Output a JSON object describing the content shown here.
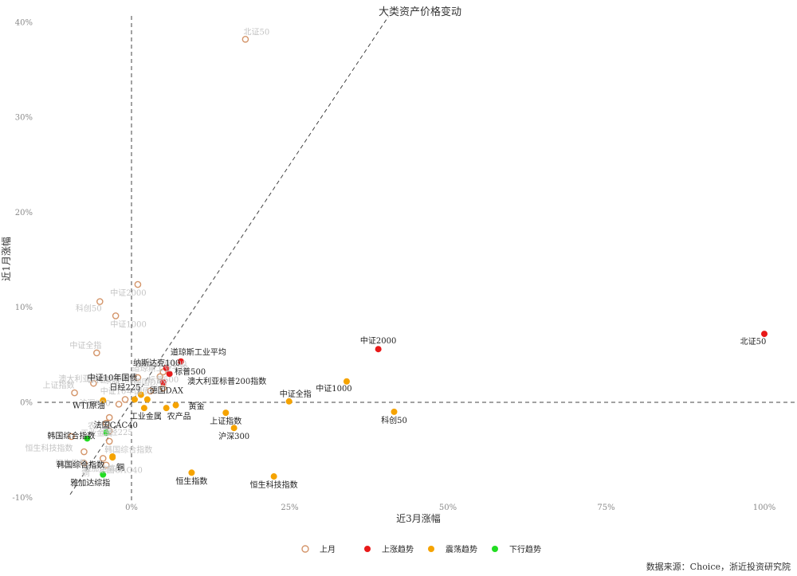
{
  "source_note": "数据来源：Choice，浙近投资研究院",
  "chart_data": {
    "type": "scatter",
    "title": "大类资产价格变动",
    "xlabel": "近3月涨幅",
    "ylabel": "近1月涨幅",
    "x_ticks": [
      "0%",
      "25%",
      "50%",
      "75%",
      "100%"
    ],
    "y_ticks": [
      "-10%",
      "0%",
      "10%",
      "20%",
      "30%",
      "40%"
    ],
    "xlim": [
      -12,
      102
    ],
    "ylim": [
      -10,
      41
    ],
    "grid": false,
    "legend_position": "bottom",
    "legend": [
      {
        "name": "上月",
        "style": "hollow",
        "color": "#d4956a"
      },
      {
        "name": "上涨趋势",
        "style": "filled",
        "color": "#e81919"
      },
      {
        "name": "震荡趋势",
        "style": "filled",
        "color": "#f5a300"
      },
      {
        "name": "下行趋势",
        "style": "filled",
        "color": "#22dd22"
      }
    ],
    "series": [
      {
        "name": "上月",
        "points": [
          {
            "label": "北证50",
            "x": 18,
            "y": 38.2
          },
          {
            "label": "中证2000",
            "x": 1,
            "y": 12.4
          },
          {
            "label": "科创50",
            "x": -5,
            "y": 10.6
          },
          {
            "label": "中证1000",
            "x": -2.5,
            "y": 9.1
          },
          {
            "label": "中证全指",
            "x": -5.5,
            "y": 5.2
          },
          {
            "label": "纳斯达克100",
            "x": 5,
            "y": 3.2
          },
          {
            "label": "澳大利亚标普200指数",
            "x": 1,
            "y": 2.6
          },
          {
            "label": "道琼斯工业平均",
            "x": 4.5,
            "y": 2.7
          },
          {
            "label": "上证指数",
            "x": -9,
            "y": 1.0
          },
          {
            "label": "WTI原油",
            "x": -6,
            "y": 2.0
          },
          {
            "label": "标普500",
            "x": 5,
            "y": 1.5
          },
          {
            "label": "德国DAX",
            "x": 3,
            "y": 1.2
          },
          {
            "label": "沪深300",
            "x": -2,
            "y": -0.2
          },
          {
            "label": "农产品",
            "x": -3.5,
            "y": -1.6
          },
          {
            "label": "中证10年国债",
            "x": -1,
            "y": 0.3
          },
          {
            "label": "恒生科技指数",
            "x": -9.5,
            "y": -3.6
          },
          {
            "label": "日经225",
            "x": -4,
            "y": -2.2
          },
          {
            "label": "工业金属",
            "x": -3.5,
            "y": -3.0
          },
          {
            "label": "韩国综合指数",
            "x": -3.5,
            "y": -4.1
          },
          {
            "label": "恒生指数",
            "x": -7.5,
            "y": -5.2
          },
          {
            "label": "法国CAC40",
            "x": -4.5,
            "y": -5.9
          },
          {
            "label": "雅加达综指",
            "x": -7.5,
            "y": -6.4
          },
          {
            "label": "铜",
            "x": -4,
            "y": -6.6
          }
        ]
      },
      {
        "name": "上涨趋势",
        "points": [
          {
            "label": "北证50",
            "x": 100,
            "y": 7.2
          },
          {
            "label": "中证2000",
            "x": 39,
            "y": 5.6
          },
          {
            "label": "道琼斯工业平均",
            "x": 7.8,
            "y": 4.3
          },
          {
            "label": "纳斯达克100",
            "x": 5.5,
            "y": 3.6
          },
          {
            "label": "标普500",
            "x": 6,
            "y": 3.0
          },
          {
            "label": "澳大利亚标普200指数",
            "x": 5,
            "y": 2.1
          }
        ]
      },
      {
        "name": "震荡趋势",
        "points": [
          {
            "label": "中证1000",
            "x": 34,
            "y": 2.2
          },
          {
            "label": "中证全指",
            "x": 24.9,
            "y": 0.1
          },
          {
            "label": "科创50",
            "x": 41.5,
            "y": -1.0
          },
          {
            "label": "上证指数",
            "x": 14.9,
            "y": -1.1
          },
          {
            "label": "沪深300",
            "x": 16.2,
            "y": -2.7
          },
          {
            "label": "恒生指数",
            "x": 9.5,
            "y": -7.4
          },
          {
            "label": "恒生科技指数",
            "x": 22.5,
            "y": -7.8
          },
          {
            "label": "黄金",
            "x": 7,
            "y": -0.3
          },
          {
            "label": "农产品",
            "x": 5.5,
            "y": -0.6
          },
          {
            "label": "德国DAX",
            "x": 2.5,
            "y": 0.3
          },
          {
            "label": "日经225",
            "x": 1.5,
            "y": 0.8
          },
          {
            "label": "中证10年国债",
            "x": 0.5,
            "y": 0.3
          },
          {
            "label": "工业金属",
            "x": 2,
            "y": -0.6
          },
          {
            "label": "WTI原油",
            "x": -4.5,
            "y": 0.2
          },
          {
            "label": "韩国综合指数",
            "x": -3,
            "y": -5.7
          },
          {
            "label": "铜",
            "x": -3,
            "y": -5.8
          }
        ]
      },
      {
        "name": "下行趋势",
        "points": [
          {
            "label": "法国CAC40",
            "x": -4,
            "y": -3.2
          },
          {
            "label": "韩国综合指数",
            "x": -7,
            "y": -3.8
          },
          {
            "label": "雅加达综指",
            "x": -4.5,
            "y": -7.6
          }
        ]
      }
    ]
  }
}
